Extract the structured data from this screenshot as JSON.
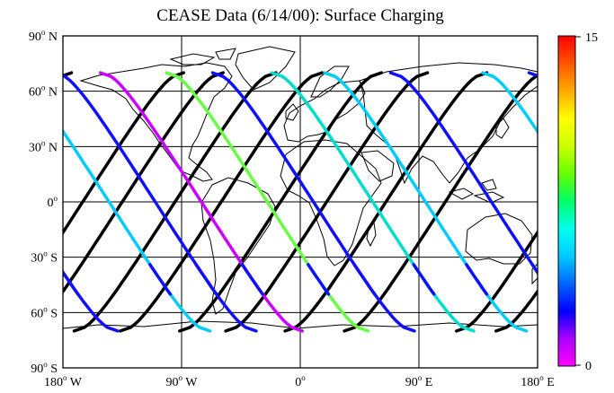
{
  "title": "CEASE Data (6/14/00):  Surface Charging",
  "lat_ticks": [
    {
      "value": 90,
      "label": "90",
      "hemi": " N"
    },
    {
      "value": 60,
      "label": "60",
      "hemi": " N"
    },
    {
      "value": 30,
      "label": "30",
      "hemi": " N"
    },
    {
      "value": 0,
      "label": "0",
      "hemi": ""
    },
    {
      "value": -30,
      "label": "30",
      "hemi": " S"
    },
    {
      "value": -60,
      "label": "60",
      "hemi": " S"
    },
    {
      "value": -90,
      "label": "90",
      "hemi": " S"
    }
  ],
  "lon_ticks": [
    {
      "value": -180,
      "label": "180",
      "hemi": " W"
    },
    {
      "value": -90,
      "label": "90",
      "hemi": " W"
    },
    {
      "value": 0,
      "label": "0",
      "hemi": ""
    },
    {
      "value": 90,
      "label": "90",
      "hemi": " E"
    },
    {
      "value": 180,
      "label": "180",
      "hemi": " E"
    }
  ],
  "degree_mark": "o",
  "colorbar": {
    "min": 0,
    "max": 15,
    "min_label": "0",
    "max_label": "15",
    "colors": [
      "#ff00ff",
      "#aa00ff",
      "#0000ff",
      "#0066ff",
      "#00ccff",
      "#00ffee",
      "#00ff66",
      "#66ff00",
      "#ccff00",
      "#ffff00",
      "#ffaa00",
      "#ff5500",
      "#ff0000"
    ]
  },
  "chart_data": {
    "type": "map-track",
    "projection": "equirectangular",
    "xlim": [
      -180,
      180
    ],
    "ylim": [
      -90,
      90
    ],
    "grid": true,
    "orbit": {
      "inclination_deg": 70,
      "crossings_per_direction": 8
    },
    "ascending_node_longitudes": [
      -165,
      -135,
      -95,
      -60,
      -15,
      20,
      65,
      110
    ],
    "descending_node_longitudes": [
      -145,
      -110,
      -75,
      -25,
      10,
      55,
      95,
      145
    ],
    "colors": {
      "black": "#000000",
      "cyan": "#00ccff",
      "blue": "#1010ff",
      "magenta": "#cc00ff",
      "green": "#66ff44",
      "teal": "#00ddcc"
    }
  }
}
